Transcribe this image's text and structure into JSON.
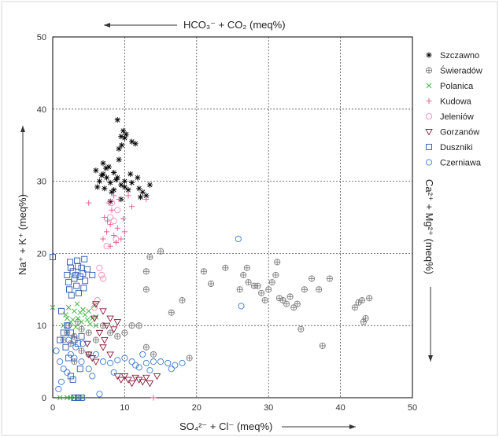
{
  "chart_data": {
    "type": "scatter",
    "title": "",
    "xlabel": "SO₄²⁻ + Cl⁻ (meq%)",
    "ylabel": "Na⁺ + K⁺ (meq%)",
    "top_label": "HCO₃⁻ + CO₂ (meq%)",
    "right_label": "Ca²⁺ + Mg²⁺ (meq%)",
    "xlim": [
      0,
      50
    ],
    "ylim": [
      0,
      50
    ],
    "x_ticks": [
      "0",
      "10",
      "20",
      "30",
      "40",
      "50"
    ],
    "y_ticks": [
      "0",
      "10",
      "20",
      "30",
      "40",
      "50"
    ],
    "grid": true,
    "legend_position": "right",
    "series": [
      {
        "name": "Szczawno",
        "marker": "asterisk",
        "color": "#000000",
        "points": [
          [
            7,
            31
          ],
          [
            7.5,
            30.5
          ],
          [
            8,
            29.8
          ],
          [
            8.5,
            31.2
          ],
          [
            6.5,
            30
          ],
          [
            7.2,
            29
          ],
          [
            8.2,
            28.5
          ],
          [
            9,
            30.5
          ],
          [
            9.5,
            29.5
          ],
          [
            10,
            30
          ],
          [
            11,
            29.8
          ],
          [
            12,
            29
          ],
          [
            12.5,
            28.5
          ],
          [
            13,
            28
          ],
          [
            10.5,
            28.8
          ],
          [
            6,
            31.5
          ],
          [
            7.8,
            32
          ],
          [
            9.2,
            34.5
          ],
          [
            9.6,
            35
          ],
          [
            10,
            36
          ],
          [
            9.8,
            37
          ],
          [
            10.2,
            36.5
          ],
          [
            9,
            38.5
          ],
          [
            9.5,
            36.2
          ],
          [
            11,
            35.5
          ],
          [
            11.5,
            35.2
          ],
          [
            6.8,
            30.8
          ],
          [
            7,
            32.5
          ],
          [
            8.8,
            30.2
          ],
          [
            10,
            29.2
          ],
          [
            11.8,
            30.5
          ],
          [
            12.2,
            27.8
          ],
          [
            13.5,
            29.5
          ],
          [
            9.5,
            27.5
          ],
          [
            8,
            27.2
          ],
          [
            6.2,
            29.2
          ],
          [
            7.4,
            31.8
          ],
          [
            10.8,
            31
          ],
          [
            9.2,
            33
          ],
          [
            8.5,
            28.8
          ]
        ]
      },
      {
        "name": "Świeradów",
        "marker": "circle-plus",
        "color": "#808080",
        "points": [
          [
            2,
            9
          ],
          [
            3,
            8.5
          ],
          [
            4,
            9.5
          ],
          [
            5,
            9
          ],
          [
            6,
            8
          ],
          [
            7,
            10
          ],
          [
            8,
            9
          ],
          [
            9,
            8.5
          ],
          [
            10,
            9
          ],
          [
            11,
            10
          ],
          [
            12,
            10
          ],
          [
            13,
            7
          ],
          [
            14,
            6
          ],
          [
            15,
            20.3
          ],
          [
            13,
            17.5
          ],
          [
            13.5,
            19.5
          ],
          [
            13,
            15
          ],
          [
            16.5,
            11.8
          ],
          [
            21,
            17.5
          ],
          [
            22,
            15.8
          ],
          [
            24,
            18
          ],
          [
            26,
            15
          ],
          [
            26.5,
            17
          ],
          [
            27,
            18
          ],
          [
            27.2,
            16
          ],
          [
            28,
            15.5
          ],
          [
            28.5,
            15.5
          ],
          [
            29,
            14.5
          ],
          [
            29.5,
            13.5
          ],
          [
            30,
            15
          ],
          [
            30.5,
            16
          ],
          [
            31,
            17
          ],
          [
            31.2,
            18.8
          ],
          [
            31.5,
            13.8
          ],
          [
            32,
            13.5
          ],
          [
            32.5,
            13
          ],
          [
            33,
            14
          ],
          [
            33.5,
            12.5
          ],
          [
            34,
            13
          ],
          [
            35,
            15
          ],
          [
            36,
            16.5
          ],
          [
            37,
            15
          ],
          [
            37.5,
            7.2
          ],
          [
            38.5,
            16.5
          ],
          [
            42,
            12.5
          ],
          [
            42.5,
            13.2
          ],
          [
            43,
            13.5
          ],
          [
            43.5,
            11
          ],
          [
            43.2,
            10.5
          ],
          [
            44,
            13.8
          ],
          [
            34.5,
            9.5
          ],
          [
            18,
            13.5
          ],
          [
            19,
            5.5
          ],
          [
            3,
            5
          ],
          [
            4,
            6.5
          ],
          [
            5,
            6
          ],
          [
            2.5,
            7.5
          ],
          [
            1.5,
            8
          ],
          [
            2.2,
            10
          ],
          [
            3.5,
            10.5
          ]
        ]
      },
      {
        "name": "Polanica",
        "marker": "cross",
        "color": "#3cb43c",
        "points": [
          [
            1.5,
            10
          ],
          [
            2,
            11
          ],
          [
            2.5,
            10.5
          ],
          [
            3,
            12
          ],
          [
            3.5,
            11
          ],
          [
            4,
            10.5
          ],
          [
            4.5,
            11.5
          ],
          [
            5,
            12
          ],
          [
            5.5,
            11
          ],
          [
            6,
            10
          ],
          [
            2.2,
            12.5
          ],
          [
            3.2,
            9.8
          ],
          [
            4.2,
            12.2
          ],
          [
            5.2,
            10.2
          ],
          [
            0,
            12.5
          ],
          [
            1.8,
            11.5
          ],
          [
            2.8,
            10.8
          ],
          [
            3.8,
            11.8
          ],
          [
            4.8,
            10.8
          ],
          [
            1,
            0
          ],
          [
            2,
            0
          ],
          [
            2.5,
            0
          ],
          [
            3,
            0
          ],
          [
            3.5,
            0
          ],
          [
            4.2,
            0
          ],
          [
            6,
            11.2
          ],
          [
            5.8,
            12.8
          ],
          [
            3.4,
            13
          ]
        ]
      },
      {
        "name": "Kudowa",
        "marker": "plus",
        "color": "#e8528a",
        "points": [
          [
            7,
            22
          ],
          [
            7.5,
            23
          ],
          [
            8,
            24
          ],
          [
            8.5,
            22.5
          ],
          [
            9,
            23.5
          ],
          [
            7.2,
            25
          ],
          [
            8.2,
            26
          ],
          [
            8.8,
            21.5
          ],
          [
            9.5,
            22
          ],
          [
            10,
            23
          ],
          [
            7.8,
            27
          ],
          [
            8.5,
            28
          ],
          [
            9.2,
            27.5
          ],
          [
            10.5,
            28
          ],
          [
            13,
            27.5
          ],
          [
            11,
            26.5
          ],
          [
            5,
            27
          ],
          [
            8,
            21
          ],
          [
            7.6,
            24.5
          ],
          [
            9.8,
            24.8
          ],
          [
            14,
            0
          ]
        ]
      },
      {
        "name": "Jeleniów",
        "marker": "circle",
        "color": "#f08cb4",
        "points": [
          [
            6.5,
            18
          ],
          [
            6.8,
            17
          ],
          [
            7,
            16.5
          ],
          [
            6.2,
            13.5
          ],
          [
            5.8,
            12.5
          ],
          [
            8,
            25
          ],
          [
            8.5,
            24.5
          ],
          [
            9,
            26
          ],
          [
            8.2,
            27
          ],
          [
            7.5,
            21
          ],
          [
            8.8,
            22
          ]
        ]
      },
      {
        "name": "Gorzanów",
        "marker": "triangle-down",
        "color": "#8b1a3c",
        "points": [
          [
            5,
            6
          ],
          [
            5.5,
            5.5
          ],
          [
            6,
            5
          ],
          [
            7,
            7
          ],
          [
            8,
            6
          ],
          [
            9,
            3
          ],
          [
            9.5,
            2.5
          ],
          [
            10,
            3
          ],
          [
            10.5,
            2.5
          ],
          [
            11,
            2
          ],
          [
            11.5,
            2.8
          ],
          [
            12,
            2.5
          ],
          [
            12.5,
            2.2
          ],
          [
            13,
            2.8
          ],
          [
            13.5,
            2
          ],
          [
            14.5,
            3
          ],
          [
            6.5,
            9
          ],
          [
            7.5,
            10
          ],
          [
            8,
            11
          ],
          [
            8.5,
            9.5
          ],
          [
            9,
            10.5
          ],
          [
            7,
            12
          ],
          [
            6,
            13
          ],
          [
            5.8,
            11
          ],
          [
            7.2,
            8
          ],
          [
            4.8,
            7.5
          ]
        ]
      },
      {
        "name": "Duszniki",
        "marker": "square",
        "color": "#2855b0",
        "points": [
          [
            2,
            17
          ],
          [
            2.2,
            16
          ],
          [
            2.5,
            18
          ],
          [
            2.8,
            17.5
          ],
          [
            3,
            16.5
          ],
          [
            3.2,
            17
          ],
          [
            3.5,
            18.2
          ],
          [
            3.8,
            16.8
          ],
          [
            4,
            18
          ],
          [
            4.2,
            17.2
          ],
          [
            4.5,
            16.2
          ],
          [
            4.8,
            17.8
          ],
          [
            2.3,
            15
          ],
          [
            3.3,
            15.5
          ],
          [
            4.3,
            15.2
          ],
          [
            2.6,
            14.2
          ],
          [
            3.6,
            14.5
          ],
          [
            2.4,
            18.8
          ],
          [
            3.4,
            19
          ],
          [
            4.4,
            19.2
          ],
          [
            0,
            19.5
          ],
          [
            5.5,
            17
          ],
          [
            1.5,
            9
          ],
          [
            2,
            10
          ],
          [
            2.5,
            9
          ],
          [
            3,
            8
          ],
          [
            3.5,
            7.5
          ],
          [
            4,
            8.5
          ],
          [
            1,
            8
          ],
          [
            1.8,
            7
          ],
          [
            2.2,
            5.5
          ],
          [
            2.5,
            3
          ],
          [
            2.8,
            2.5
          ],
          [
            3,
            0
          ],
          [
            3.5,
            0
          ],
          [
            4,
            0
          ],
          [
            3.8,
            4
          ],
          [
            1.2,
            12
          ]
        ]
      },
      {
        "name": "Czerniawa",
        "marker": "circle",
        "color": "#3a7ad6",
        "points": [
          [
            1,
            5
          ],
          [
            1.5,
            4
          ],
          [
            2,
            3.5
          ],
          [
            2.5,
            6
          ],
          [
            3,
            5.5
          ],
          [
            4,
            5
          ],
          [
            5,
            4
          ],
          [
            6,
            6
          ],
          [
            7,
            5
          ],
          [
            8,
            4.8
          ],
          [
            9,
            5.2
          ],
          [
            10,
            5.5
          ],
          [
            11,
            5
          ],
          [
            11.5,
            4.5
          ],
          [
            12,
            4.2
          ],
          [
            13,
            4.8
          ],
          [
            14,
            5
          ],
          [
            15,
            5
          ],
          [
            16,
            4.8
          ],
          [
            17,
            4.5
          ],
          [
            18,
            4.8
          ],
          [
            16.5,
            4
          ],
          [
            13.5,
            3.8
          ],
          [
            12.5,
            6
          ],
          [
            8.5,
            3.5
          ],
          [
            6.5,
            0.5
          ],
          [
            0.8,
            1.2
          ],
          [
            1.2,
            2.2
          ],
          [
            25.8,
            22
          ],
          [
            26.2,
            12.7
          ],
          [
            2.2,
            8
          ],
          [
            3.2,
            7
          ],
          [
            4.2,
            7.5
          ],
          [
            0.5,
            6.5
          ],
          [
            5.5,
            3
          ]
        ]
      }
    ]
  }
}
